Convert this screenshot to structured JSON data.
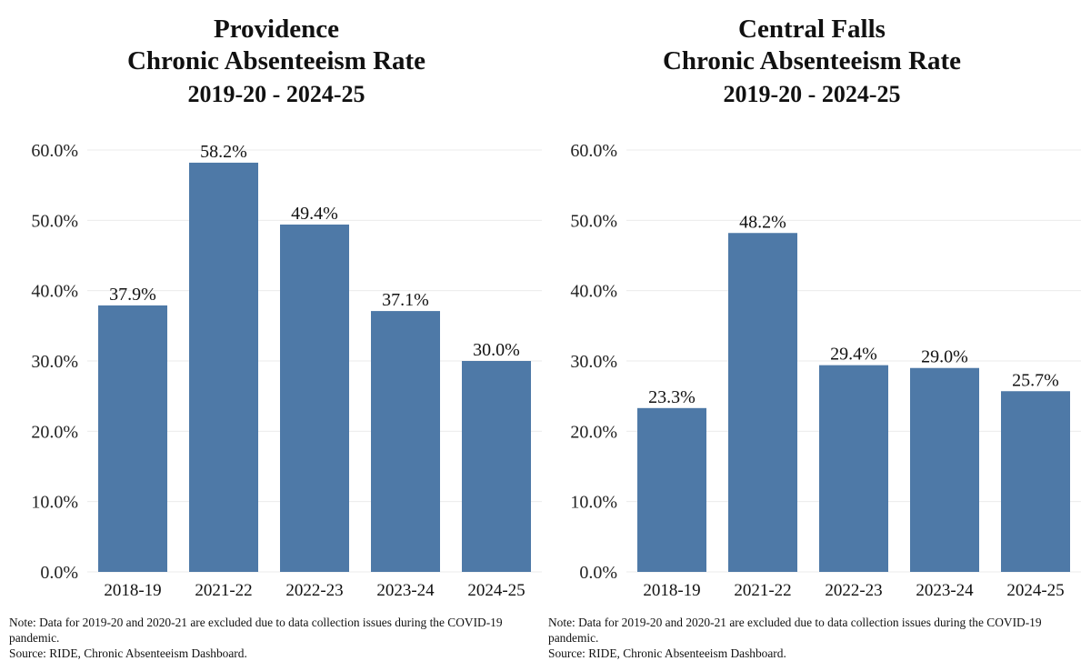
{
  "colors": {
    "bar": "#4e79a7",
    "grid": "#ebebeb"
  },
  "chart_data": [
    {
      "type": "bar",
      "title": "Providence",
      "subtitle": "Chronic Absenteeism Rate",
      "period": "2019-20 - 2024-25",
      "categories": [
        "2018-19",
        "2021-22",
        "2022-23",
        "2023-24",
        "2024-25"
      ],
      "values": [
        37.9,
        58.2,
        49.4,
        37.1,
        30.0
      ],
      "value_labels": [
        "37.9%",
        "58.2%",
        "49.4%",
        "37.1%",
        "30.0%"
      ],
      "yticks": [
        "0.0%",
        "10.0%",
        "20.0%",
        "30.0%",
        "40.0%",
        "50.0%",
        "60.0%"
      ],
      "ylim": [
        0,
        60
      ],
      "xlabel": "",
      "ylabel": "",
      "grid": true,
      "note_line1": "Note: Data for 2019-20 and 2020-21 are excluded due to data collection issues during the COVID-19 pandemic.",
      "source": "Source: RIDE, Chronic Absenteeism Dashboard."
    },
    {
      "type": "bar",
      "title": "Central Falls",
      "subtitle": "Chronic Absenteeism Rate",
      "period": "2019-20 - 2024-25",
      "categories": [
        "2018-19",
        "2021-22",
        "2022-23",
        "2023-24",
        "2024-25"
      ],
      "values": [
        23.3,
        48.2,
        29.4,
        29.0,
        25.7
      ],
      "value_labels": [
        "23.3%",
        "48.2%",
        "29.4%",
        "29.0%",
        "25.7%"
      ],
      "yticks": [
        "0.0%",
        "10.0%",
        "20.0%",
        "30.0%",
        "40.0%",
        "50.0%",
        "60.0%"
      ],
      "ylim": [
        0,
        60
      ],
      "xlabel": "",
      "ylabel": "",
      "grid": true,
      "note_line1": "Note: Data for 2019-20 and 2020-21 are excluded due to data collection issues during the COVID-19 pandemic.",
      "source": "Source: RIDE, Chronic Absenteeism Dashboard."
    }
  ]
}
